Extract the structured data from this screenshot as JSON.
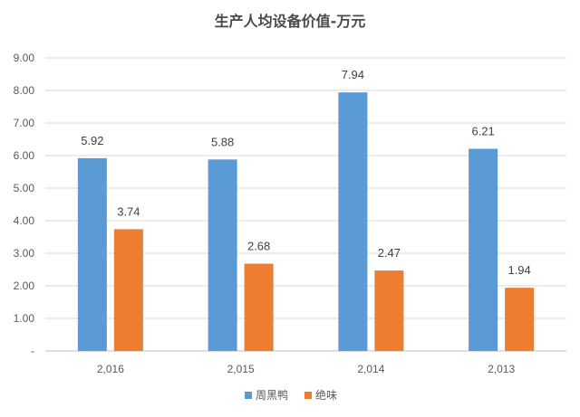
{
  "chart_data": {
    "type": "bar",
    "title": "生产人均设备价值-万元",
    "categories": [
      "2,016",
      "2,015",
      "2,014",
      "2,013"
    ],
    "series": [
      {
        "name": "周黑鸭",
        "color": "#5b9bd5",
        "values": [
          5.92,
          5.88,
          7.94,
          6.21
        ],
        "labels": [
          "5.92",
          "5.88",
          "7.94",
          "6.21"
        ]
      },
      {
        "name": "绝味",
        "color": "#ed7d31",
        "values": [
          3.74,
          2.68,
          2.47,
          1.94
        ],
        "labels": [
          "3.74",
          "2.68",
          "2.47",
          "1.94"
        ]
      }
    ],
    "ylim": [
      0,
      9
    ],
    "yticks": [
      {
        "value": 0,
        "label": "-"
      },
      {
        "value": 1,
        "label": "1.00"
      },
      {
        "value": 2,
        "label": "2.00"
      },
      {
        "value": 3,
        "label": "3.00"
      },
      {
        "value": 4,
        "label": "4.00"
      },
      {
        "value": 5,
        "label": "5.00"
      },
      {
        "value": 6,
        "label": "6.00"
      },
      {
        "value": 7,
        "label": "7.00"
      },
      {
        "value": 8,
        "label": "8.00"
      },
      {
        "value": 9,
        "label": "9.00"
      }
    ],
    "grid": true,
    "legend_position": "bottom"
  }
}
